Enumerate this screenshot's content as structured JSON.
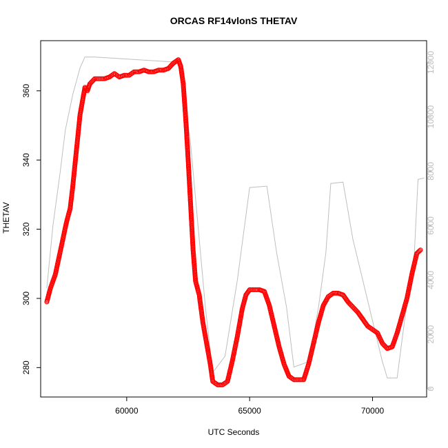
{
  "chart_data": {
    "type": "scatter",
    "title": "ORCAS RF14vlonS THETAV",
    "xlabel": "UTC Seconds",
    "ylabel": "THETAV",
    "xlim": [
      56500,
      72200
    ],
    "ylim": [
      271.5,
      374.5
    ],
    "y2lim": [
      -300,
      12800
    ],
    "x_ticks": [
      60000,
      65000,
      70000
    ],
    "x_tick_labels": [
      "60000",
      "65000",
      "70000"
    ],
    "y_ticks": [
      280,
      300,
      320,
      340,
      360
    ],
    "y_tick_labels": [
      "280",
      "300",
      "320",
      "340",
      "360"
    ],
    "y2_ticks": [
      0,
      2000,
      4000,
      6000,
      8000,
      10000,
      12000
    ],
    "y2_tick_labels": [
      "0",
      "2000",
      "4000",
      "6000",
      "8000",
      "10000",
      "12000"
    ],
    "grid": false,
    "legend": "none",
    "series": [
      {
        "axis": "left",
        "style": "points",
        "color": "#ff0000",
        "points": [
          [
            56750,
            299
          ],
          [
            56900,
            303
          ],
          [
            57100,
            307
          ],
          [
            57250,
            312
          ],
          [
            57400,
            317
          ],
          [
            57550,
            322
          ],
          [
            57700,
            326
          ],
          [
            57800,
            332
          ],
          [
            57900,
            339
          ],
          [
            58000,
            346
          ],
          [
            58100,
            353
          ],
          [
            58200,
            357
          ],
          [
            58300,
            361
          ],
          [
            58400,
            360
          ],
          [
            58500,
            362
          ],
          [
            58700,
            363.5
          ],
          [
            58900,
            363.5
          ],
          [
            59100,
            363.5
          ],
          [
            59300,
            364
          ],
          [
            59500,
            365
          ],
          [
            59700,
            364
          ],
          [
            59900,
            364.5
          ],
          [
            60100,
            364.5
          ],
          [
            60300,
            365.5
          ],
          [
            60500,
            365.5
          ],
          [
            60700,
            366
          ],
          [
            60900,
            365.5
          ],
          [
            61100,
            365.5
          ],
          [
            61300,
            366
          ],
          [
            61500,
            366
          ],
          [
            61700,
            366.5
          ],
          [
            61900,
            368
          ],
          [
            62100,
            369
          ],
          [
            62200,
            367
          ],
          [
            62300,
            362
          ],
          [
            62400,
            352
          ],
          [
            62500,
            340
          ],
          [
            62600,
            327
          ],
          [
            62700,
            314
          ],
          [
            62800,
            305
          ],
          [
            62950,
            301
          ],
          [
            63100,
            293
          ],
          [
            63250,
            287
          ],
          [
            63400,
            281
          ],
          [
            63500,
            276
          ],
          [
            63700,
            275
          ],
          [
            63900,
            275
          ],
          [
            64100,
            276
          ],
          [
            64300,
            282
          ],
          [
            64500,
            289
          ],
          [
            64700,
            297
          ],
          [
            64850,
            301
          ],
          [
            65000,
            302.5
          ],
          [
            65200,
            302.5
          ],
          [
            65400,
            302.5
          ],
          [
            65600,
            302
          ],
          [
            65800,
            298
          ],
          [
            66000,
            292
          ],
          [
            66200,
            286
          ],
          [
            66400,
            281
          ],
          [
            66600,
            277.5
          ],
          [
            66800,
            276.5
          ],
          [
            67000,
            276.5
          ],
          [
            67200,
            276.5
          ],
          [
            67400,
            281
          ],
          [
            67600,
            287
          ],
          [
            67800,
            293
          ],
          [
            68000,
            298
          ],
          [
            68200,
            300.5
          ],
          [
            68400,
            301.5
          ],
          [
            68600,
            301.5
          ],
          [
            68800,
            301
          ],
          [
            69000,
            299
          ],
          [
            69200,
            297.5
          ],
          [
            69400,
            296
          ],
          [
            69600,
            294
          ],
          [
            69800,
            292
          ],
          [
            70000,
            291
          ],
          [
            70200,
            290
          ],
          [
            70400,
            287
          ],
          [
            70600,
            285.5
          ],
          [
            70800,
            286
          ],
          [
            71000,
            290
          ],
          [
            71200,
            295
          ],
          [
            71400,
            300
          ],
          [
            71600,
            307
          ],
          [
            71800,
            313
          ],
          [
            71950,
            314
          ]
        ]
      },
      {
        "axis": "right",
        "style": "line",
        "color": "#bebebe",
        "points": [
          [
            56750,
            3700
          ],
          [
            57000,
            6000
          ],
          [
            57300,
            8000
          ],
          [
            57500,
            9500
          ],
          [
            57800,
            10800
          ],
          [
            58100,
            11800
          ],
          [
            58300,
            12200
          ],
          [
            58700,
            12200
          ],
          [
            62200,
            12000
          ],
          [
            62600,
            9000
          ],
          [
            62900,
            6000
          ],
          [
            63200,
            3000
          ],
          [
            63500,
            600
          ],
          [
            64000,
            1200
          ],
          [
            64500,
            4000
          ],
          [
            65000,
            7400
          ],
          [
            65700,
            7450
          ],
          [
            66100,
            5000
          ],
          [
            66500,
            3000
          ],
          [
            66800,
            800
          ],
          [
            67400,
            1000
          ],
          [
            67800,
            3000
          ],
          [
            68100,
            5000
          ],
          [
            68300,
            7550
          ],
          [
            68800,
            7600
          ],
          [
            69200,
            5500
          ],
          [
            69600,
            4000
          ],
          [
            70000,
            2500
          ],
          [
            70400,
            1000
          ],
          [
            70600,
            400
          ],
          [
            71000,
            400
          ],
          [
            71300,
            2500
          ],
          [
            71700,
            5000
          ],
          [
            71850,
            7700
          ],
          [
            72100,
            7750
          ]
        ]
      }
    ]
  }
}
